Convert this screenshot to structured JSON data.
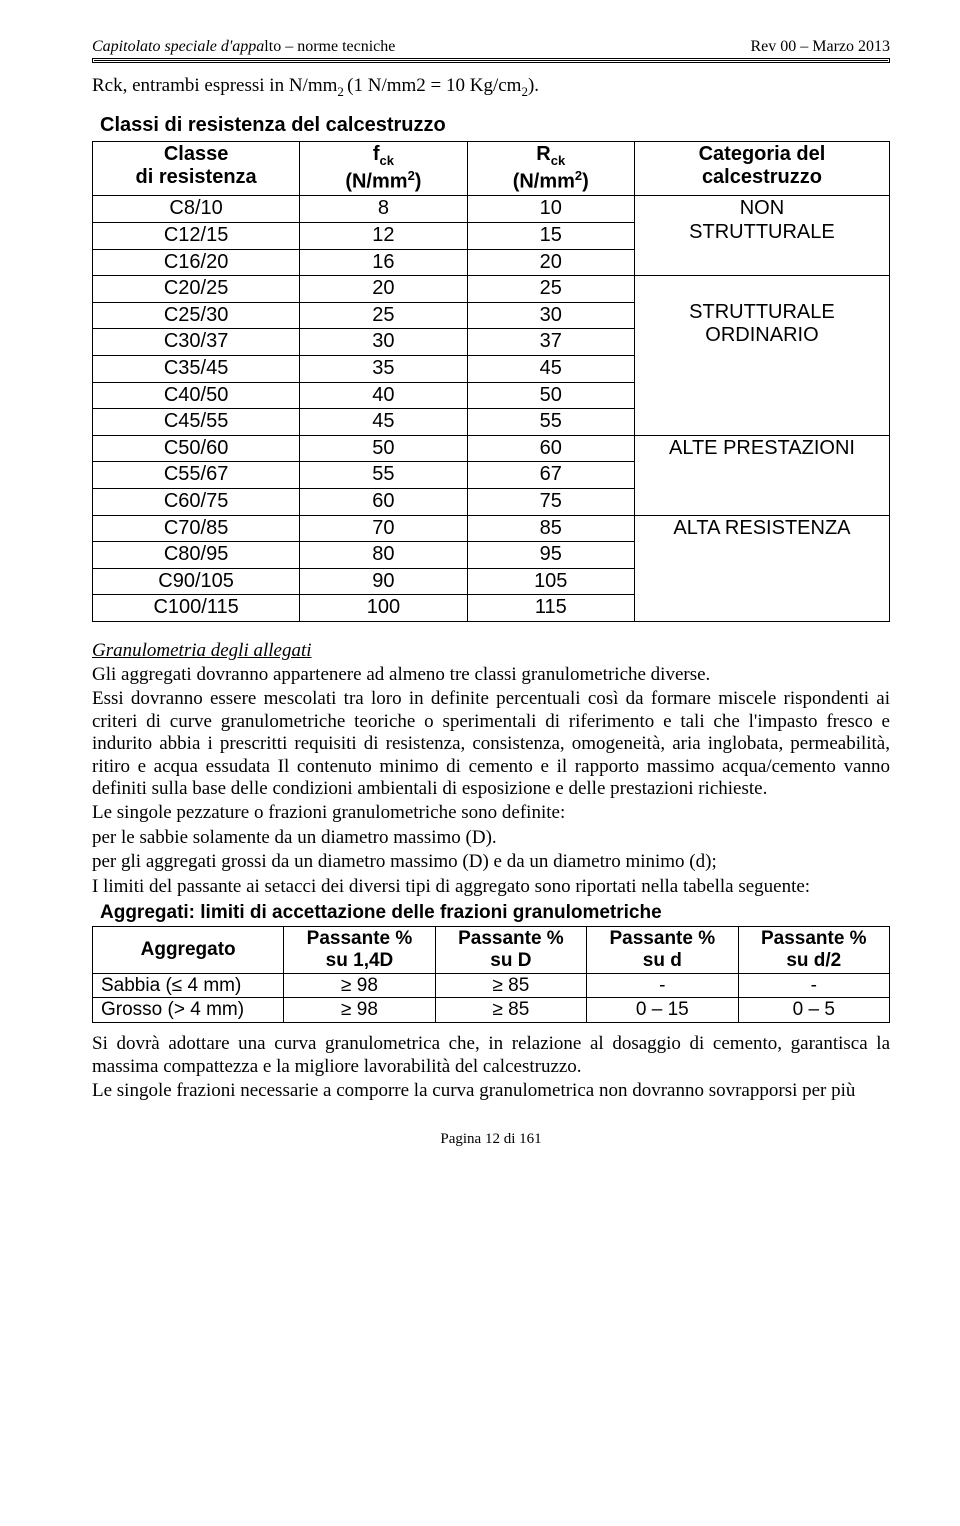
{
  "header": {
    "left_prefix": "Capitolato speciale d'appa",
    "left_suffix": "lto – norme tecniche",
    "right": "Rev 00 – Marzo 2013"
  },
  "intro": {
    "pre": "Rck, entrambi espressi in N/mm",
    "sub1": "2 ",
    "paren_pre": "(1 N/mm2 = 10 Kg/cm",
    "sub2": "2",
    "post": ")."
  },
  "table1": {
    "caption": "Classi di resistenza del calcestruzzo",
    "head": {
      "c1a": "Classe",
      "c1b": "di resistenza",
      "c2a": "f",
      "c2sub": "ck",
      "c2unit_pre": "(N/mm",
      "c2unit_sup": "2",
      "c2unit_post": ")",
      "c3a": "R",
      "c3sub": "ck",
      "c3unit_pre": "(N/mm",
      "c3unit_sup": "2",
      "c3unit_post": ")",
      "c4a": "Categoria del",
      "c4b": "calcestruzzo"
    },
    "groups": [
      {
        "cat_lines": [
          "NON",
          "STRUTTURALE"
        ],
        "rows": [
          {
            "c": "C8/10",
            "f": "8",
            "r": "10"
          },
          {
            "c": "C12/15",
            "f": "12",
            "r": "15"
          },
          {
            "c": "C16/20",
            "f": "16",
            "r": "20"
          }
        ]
      },
      {
        "cat_lines": [
          "",
          "STRUTTURALE",
          "ORDINARIO"
        ],
        "rows": [
          {
            "c": "C20/25",
            "f": "20",
            "r": "25"
          },
          {
            "c": "C25/30",
            "f": "25",
            "r": "30"
          },
          {
            "c": "C30/37",
            "f": "30",
            "r": "37"
          },
          {
            "c": "C35/45",
            "f": "35",
            "r": "45"
          },
          {
            "c": "C40/50",
            "f": "40",
            "r": "50"
          },
          {
            "c": "C45/55",
            "f": "45",
            "r": "55"
          }
        ]
      },
      {
        "cat_lines": [
          "ALTE PRESTAZIONI"
        ],
        "rows": [
          {
            "c": "C50/60",
            "f": "50",
            "r": "60"
          },
          {
            "c": "C55/67",
            "f": "55",
            "r": "67"
          },
          {
            "c": "C60/75",
            "f": "60",
            "r": "75"
          }
        ]
      },
      {
        "cat_lines": [
          "ALTA RESISTENZA"
        ],
        "rows": [
          {
            "c": "C70/85",
            "f": "70",
            "r": "85"
          },
          {
            "c": "C80/95",
            "f": "80",
            "r": "95"
          },
          {
            "c": "C90/105",
            "f": "90",
            "r": "105"
          },
          {
            "c": "C100/115",
            "f": "100",
            "r": "115"
          }
        ]
      }
    ]
  },
  "section_title": "Granulometria degli allegati",
  "paragraphs": [
    "Gli aggregati dovranno appartenere ad almeno tre classi granulometriche diverse.",
    "Essi dovranno essere mescolati tra loro in definite percentuali così da formare miscele rispondenti ai criteri di curve granulometriche teoriche o sperimentali di riferimento e tali che l'impasto fresco e indurito abbia i prescritti requisiti di resistenza, consistenza, omogeneità, aria inglobata, permeabilità, ritiro e acqua essudata Il contenuto minimo di cemento e il rapporto massimo acqua/cemento vanno definiti sulla base delle condizioni ambientali di esposizione e delle prestazioni richieste.",
    "Le singole pezzature o frazioni granulometriche sono definite:",
    "per le sabbie solamente da un diametro massimo (D).",
    "per gli aggregati grossi da un diametro massimo (D) e da un diametro minimo (d);",
    "I limiti del passante ai setacci dei diversi tipi di aggregato sono riportati nella tabella seguente:"
  ],
  "table2": {
    "caption": "Aggregati: limiti di accettazione delle frazioni granulometriche",
    "head": {
      "c1": "Aggregato",
      "c2a": "Passante %",
      "c2b": "su 1,4D",
      "c3a": "Passante %",
      "c3b": "su D",
      "c4a": "Passante %",
      "c4b": "su d",
      "c5a": "Passante %",
      "c5b": "su d/2"
    },
    "rows": [
      {
        "a": "Sabbia (≤ 4 mm)",
        "b": "≥ 98",
        "c": "≥ 85",
        "d": "-",
        "e": "-"
      },
      {
        "a": "Grosso (> 4 mm)",
        "b": "≥ 98",
        "c": "≥ 85",
        "d": "0 – 15",
        "e": "0 – 5"
      }
    ]
  },
  "paragraphs2": [
    "Si dovrà adottare una curva granulometrica che, in relazione al dosaggio di cemento, garantisca la massima compattezza e la migliore lavorabilità del calcestruzzo.",
    "Le singole frazioni necessarie a comporre la curva granulometrica non dovranno sovrapporsi per più"
  ],
  "footer": "Pagina 12 di 161"
}
